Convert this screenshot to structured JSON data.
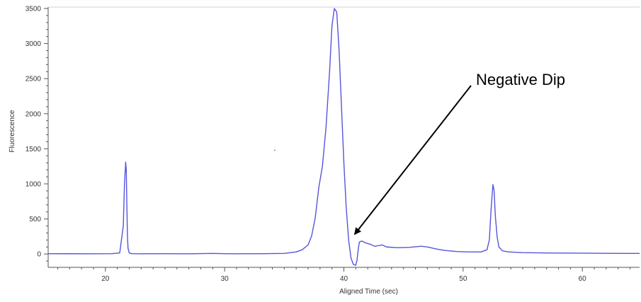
{
  "chart_data": {
    "type": "line",
    "title": "",
    "xlabel": "Aligned Time (sec)",
    "ylabel": "Fluorescence",
    "xlim": [
      15.2,
      64.8
    ],
    "ylim": [
      -190,
      3500
    ],
    "x_ticks": [
      20,
      30,
      40,
      50,
      60
    ],
    "y_ticks": [
      0,
      500,
      1000,
      1500,
      2000,
      2500,
      3000,
      3500
    ],
    "grid": false,
    "legend": "none",
    "line_color": "#5555dd",
    "series": [
      {
        "x": [
          15.2,
          17,
          19,
          20.5,
          21.2,
          21.5,
          21.6,
          21.7,
          21.75,
          21.8,
          21.85,
          21.9,
          22.0,
          22.2,
          23,
          25,
          27,
          29,
          30,
          31,
          33,
          35,
          36,
          36.5,
          37,
          37.3,
          37.6,
          37.9,
          38.2,
          38.5,
          38.8,
          39.0,
          39.2,
          39.4,
          39.6,
          39.8,
          40.0,
          40.2,
          40.4,
          40.6,
          40.8,
          41.0,
          41.1,
          41.2,
          41.3,
          41.5,
          41.8,
          42.2,
          42.6,
          42.9,
          43.2,
          43.6,
          44.5,
          45.5,
          46.5,
          47.0,
          47.8,
          48.5,
          49.5,
          50.5,
          51.5,
          52.0,
          52.2,
          52.35,
          52.5,
          52.6,
          52.7,
          52.85,
          53.0,
          53.3,
          53.8,
          55,
          57,
          60,
          62,
          64.8
        ],
        "y": [
          5,
          4,
          3,
          5,
          15,
          400,
          1000,
          1310,
          1200,
          700,
          250,
          80,
          15,
          5,
          3,
          5,
          3,
          8,
          5,
          3,
          5,
          8,
          30,
          60,
          130,
          260,
          520,
          950,
          1250,
          1800,
          2600,
          3250,
          3500,
          3450,
          2900,
          2100,
          1300,
          650,
          200,
          -60,
          -150,
          -160,
          -90,
          60,
          170,
          185,
          160,
          140,
          110,
          120,
          130,
          100,
          90,
          95,
          110,
          100,
          70,
          50,
          35,
          30,
          30,
          60,
          200,
          650,
          990,
          900,
          550,
          250,
          100,
          45,
          30,
          20,
          15,
          12,
          10,
          8
        ]
      }
    ],
    "annotations": [
      {
        "text": "Negative Dip",
        "points_to": {
          "x": 40.9,
          "y": 280
        }
      }
    ]
  }
}
